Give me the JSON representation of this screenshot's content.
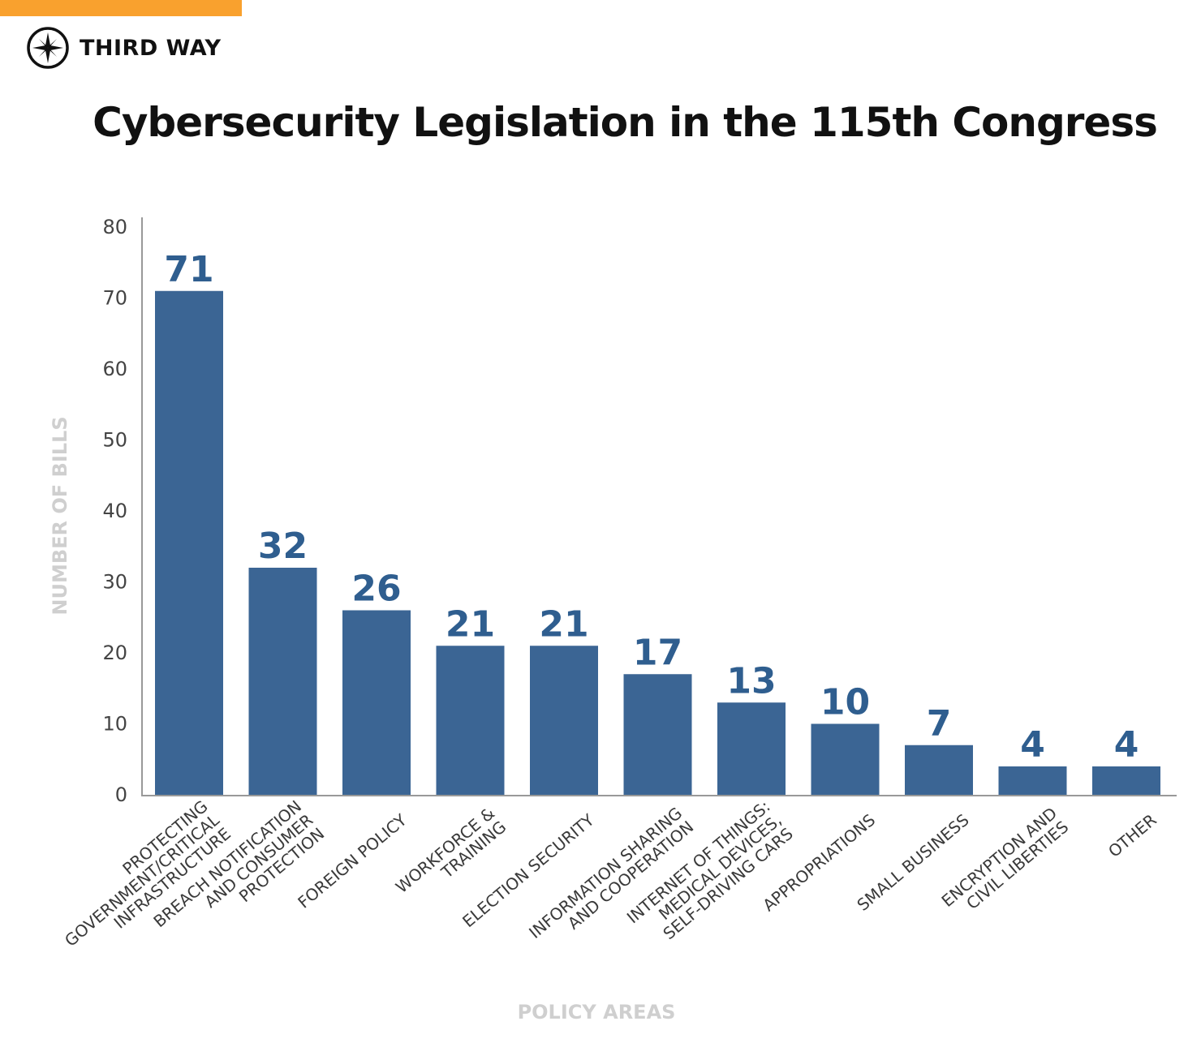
{
  "brand": {
    "name": "THIRD WAY",
    "accent_color": "#F9A12E",
    "logo_icon": "compass-star-icon"
  },
  "colors": {
    "bar": "#3B6594",
    "value_label": "#2F5E8F",
    "axis_title": "#CFCFCF"
  },
  "chart_data": {
    "type": "bar",
    "title": "Cybersecurity Legislation in the 115th Congress",
    "xlabel": "POLICY AREAS",
    "ylabel": "NUMBER OF BILLS",
    "ylim": [
      0,
      80
    ],
    "yticks": [
      0,
      10,
      20,
      30,
      40,
      50,
      60,
      70,
      80
    ],
    "grid": false,
    "categories": [
      [
        "PROTECTING",
        "GOVERNMENT/CRITICAL",
        "INFRASTRUCTURE"
      ],
      [
        "BREACH NOTIFICATION",
        "AND CONSUMER",
        "PROTECTION"
      ],
      [
        "FOREIGN POLICY"
      ],
      [
        "WORKFORCE &",
        "TRAINING"
      ],
      [
        "ELECTION SECURITY"
      ],
      [
        "INFORMATION SHARING",
        "AND COOPERATION"
      ],
      [
        "INTERNET OF THINGS:",
        "MEDICAL DEVICES,",
        "SELF-DRIVING CARS"
      ],
      [
        "APPROPRIATIONS"
      ],
      [
        "SMALL BUSINESS"
      ],
      [
        "ENCRYPTION AND",
        "CIVIL LIBERTIES"
      ],
      [
        "OTHER"
      ]
    ],
    "values": [
      71,
      32,
      26,
      21,
      21,
      17,
      13,
      10,
      7,
      4,
      4
    ]
  }
}
